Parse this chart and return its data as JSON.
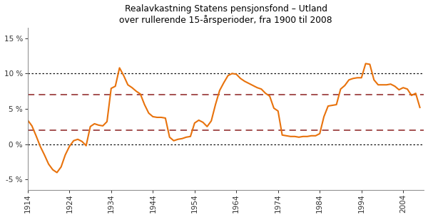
{
  "title": "Realavkastning Statens pensjonsfond – Utland\nover rullerende 15-årsperioder, fra 1900 til 2008",
  "line_color": "#E8720C",
  "background_color": "#ffffff",
  "dotted_line_color": "#111111",
  "dashed_line_color": "#8B2020",
  "dotted_lines": [
    0.0,
    10.0
  ],
  "dashed_lines": [
    2.0,
    7.0
  ],
  "xlim": [
    1914,
    2009
  ],
  "ylim": [
    -6.5,
    16.5
  ],
  "xticks": [
    1914,
    1924,
    1934,
    1944,
    1954,
    1964,
    1974,
    1984,
    1994,
    2004
  ],
  "yticks": [
    -5,
    0,
    5,
    10,
    15
  ],
  "ytick_labels": [
    "-5 %",
    "0 %",
    "5 %",
    "10 %",
    "15 %"
  ],
  "years": [
    1914,
    1915,
    1916,
    1917,
    1918,
    1919,
    1920,
    1921,
    1922,
    1923,
    1924,
    1925,
    1926,
    1927,
    1928,
    1929,
    1930,
    1931,
    1932,
    1933,
    1934,
    1935,
    1936,
    1937,
    1938,
    1939,
    1940,
    1941,
    1942,
    1943,
    1944,
    1945,
    1946,
    1947,
    1948,
    1949,
    1950,
    1951,
    1952,
    1953,
    1954,
    1955,
    1956,
    1957,
    1958,
    1959,
    1960,
    1961,
    1962,
    1963,
    1964,
    1965,
    1966,
    1967,
    1968,
    1969,
    1970,
    1971,
    1972,
    1973,
    1974,
    1975,
    1976,
    1977,
    1978,
    1979,
    1980,
    1981,
    1982,
    1983,
    1984,
    1985,
    1986,
    1987,
    1988,
    1989,
    1990,
    1991,
    1992,
    1993,
    1994,
    1995,
    1996,
    1997,
    1998,
    1999,
    2000,
    2001,
    2002,
    2003,
    2004,
    2005,
    2006,
    2007,
    2008
  ],
  "values": [
    3.4,
    2.6,
    1.2,
    -0.3,
    -1.5,
    -2.8,
    -3.6,
    -4.0,
    -3.2,
    -1.5,
    -0.3,
    0.5,
    0.7,
    0.4,
    -0.2,
    2.5,
    2.9,
    2.7,
    2.6,
    3.2,
    7.9,
    8.2,
    10.8,
    9.7,
    8.4,
    8.0,
    7.5,
    7.1,
    5.6,
    4.4,
    3.9,
    3.8,
    3.8,
    3.7,
    1.0,
    0.5,
    0.7,
    0.8,
    1.0,
    1.1,
    3.0,
    3.4,
    3.1,
    2.5,
    3.3,
    5.6,
    7.6,
    8.7,
    9.7,
    10.0,
    9.9,
    9.3,
    8.9,
    8.6,
    8.3,
    8.0,
    7.8,
    7.2,
    6.8,
    5.1,
    4.7,
    1.3,
    1.2,
    1.1,
    1.1,
    1.0,
    1.1,
    1.1,
    1.2,
    1.2,
    1.5,
    3.9,
    5.4,
    5.5,
    5.6,
    7.8,
    8.3,
    9.1,
    9.3,
    9.4,
    9.4,
    11.4,
    11.3,
    9.1,
    8.4,
    8.4,
    8.4,
    8.5,
    8.2,
    7.7,
    8.0,
    7.8,
    6.9,
    7.2,
    5.2
  ]
}
